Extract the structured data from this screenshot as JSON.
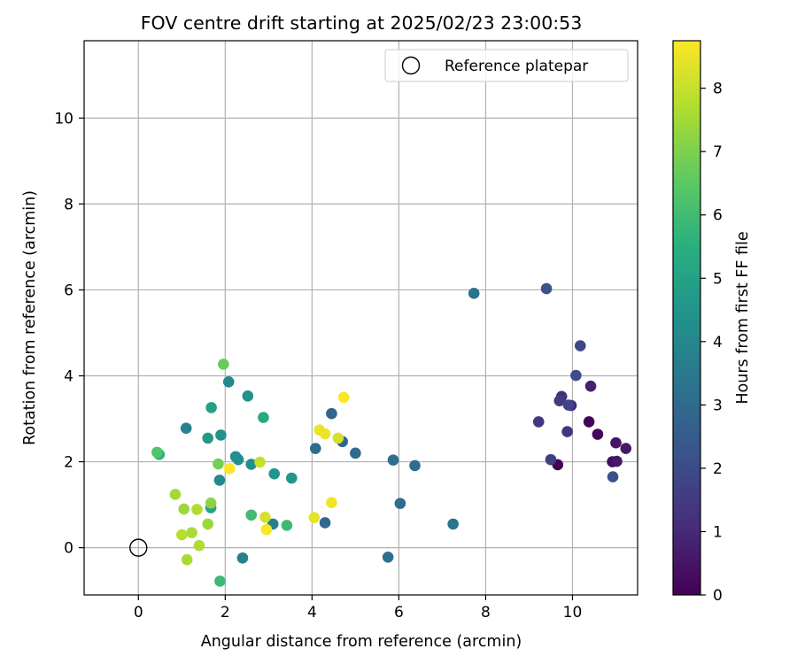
{
  "chart_data": {
    "type": "scatter",
    "title": "FOV centre drift starting at 2025/02/23 23:00:53",
    "xlabel": "Angular distance from reference (arcmin)",
    "ylabel": "Rotation from reference (arcmin)",
    "xlim": [
      -1.25,
      11.5
    ],
    "ylim": [
      -1.1,
      11.8
    ],
    "xticks": [
      0,
      2,
      4,
      6,
      8,
      10
    ],
    "yticks": [
      0,
      2,
      4,
      6,
      8,
      10
    ],
    "grid": true,
    "legend": {
      "placement": "top-right",
      "entries": [
        "Reference platepar"
      ]
    },
    "reference_point": {
      "x": 0,
      "y": 0,
      "name": "Reference platepar"
    },
    "colorbar": {
      "label": "Hours from first FF file",
      "colormap": "viridis",
      "range": [
        0,
        8.75
      ],
      "ticks": [
        0,
        1,
        2,
        3,
        4,
        5,
        6,
        7,
        8
      ]
    },
    "points": [
      {
        "x": 9.66,
        "y": 1.93,
        "c": 0.0
      },
      {
        "x": 10.38,
        "y": 2.93,
        "c": 0.05
      },
      {
        "x": 10.58,
        "y": 2.64,
        "c": 0.15
      },
      {
        "x": 10.92,
        "y": 2.0,
        "c": 0.3
      },
      {
        "x": 11.0,
        "y": 2.44,
        "c": 0.5
      },
      {
        "x": 11.02,
        "y": 2.01,
        "c": 0.55
      },
      {
        "x": 11.23,
        "y": 2.31,
        "c": 0.6
      },
      {
        "x": 10.42,
        "y": 3.76,
        "c": 0.75
      },
      {
        "x": 9.97,
        "y": 3.31,
        "c": 1.0
      },
      {
        "x": 9.75,
        "y": 3.52,
        "c": 1.2
      },
      {
        "x": 9.88,
        "y": 2.7,
        "c": 1.3
      },
      {
        "x": 9.22,
        "y": 2.93,
        "c": 1.4
      },
      {
        "x": 9.5,
        "y": 2.05,
        "c": 1.6
      },
      {
        "x": 9.7,
        "y": 3.42,
        "c": 1.5
      },
      {
        "x": 9.91,
        "y": 3.32,
        "c": 1.8
      },
      {
        "x": 10.18,
        "y": 4.7,
        "c": 1.9
      },
      {
        "x": 10.08,
        "y": 4.01,
        "c": 2.0
      },
      {
        "x": 10.93,
        "y": 1.65,
        "c": 2.2
      },
      {
        "x": 9.4,
        "y": 6.03,
        "c": 2.2
      },
      {
        "x": 4.45,
        "y": 3.12,
        "c": 2.8
      },
      {
        "x": 4.7,
        "y": 2.47,
        "c": 2.9
      },
      {
        "x": 4.3,
        "y": 0.58,
        "c": 2.9
      },
      {
        "x": 5.0,
        "y": 2.2,
        "c": 3.0
      },
      {
        "x": 4.08,
        "y": 2.31,
        "c": 3.0
      },
      {
        "x": 6.03,
        "y": 1.03,
        "c": 3.1
      },
      {
        "x": 6.37,
        "y": 1.91,
        "c": 3.1
      },
      {
        "x": 5.87,
        "y": 2.04,
        "c": 3.2
      },
      {
        "x": 5.75,
        "y": -0.22,
        "c": 3.2
      },
      {
        "x": 7.25,
        "y": 0.55,
        "c": 3.3
      },
      {
        "x": 7.73,
        "y": 5.92,
        "c": 3.3
      },
      {
        "x": 2.4,
        "y": -0.24,
        "c": 3.8
      },
      {
        "x": 1.1,
        "y": 2.78,
        "c": 3.8
      },
      {
        "x": 3.1,
        "y": 0.55,
        "c": 3.8
      },
      {
        "x": 1.87,
        "y": 1.57,
        "c": 4.1
      },
      {
        "x": 2.08,
        "y": 3.86,
        "c": 4.1
      },
      {
        "x": 2.24,
        "y": 2.12,
        "c": 4.3
      },
      {
        "x": 2.3,
        "y": 2.05,
        "c": 4.3
      },
      {
        "x": 2.6,
        "y": 1.94,
        "c": 4.3
      },
      {
        "x": 2.52,
        "y": 3.53,
        "c": 4.4
      },
      {
        "x": 1.9,
        "y": 2.62,
        "c": 4.4
      },
      {
        "x": 3.13,
        "y": 1.72,
        "c": 4.5
      },
      {
        "x": 3.53,
        "y": 1.62,
        "c": 4.6
      },
      {
        "x": 1.6,
        "y": 2.55,
        "c": 4.7
      },
      {
        "x": 1.68,
        "y": 3.26,
        "c": 5.0
      },
      {
        "x": 1.67,
        "y": 0.93,
        "c": 5.1
      },
      {
        "x": 2.88,
        "y": 3.03,
        "c": 5.3
      },
      {
        "x": 0.48,
        "y": 2.17,
        "c": 5.6
      },
      {
        "x": 1.88,
        "y": -0.78,
        "c": 5.9
      },
      {
        "x": 3.42,
        "y": 0.52,
        "c": 5.9
      },
      {
        "x": 2.6,
        "y": 0.76,
        "c": 6.0
      },
      {
        "x": 0.43,
        "y": 2.22,
        "c": 6.3
      },
      {
        "x": 1.96,
        "y": 4.27,
        "c": 6.7
      },
      {
        "x": 1.84,
        "y": 1.95,
        "c": 6.9
      },
      {
        "x": 1.67,
        "y": 1.04,
        "c": 7.2
      },
      {
        "x": 1.6,
        "y": 0.55,
        "c": 7.4
      },
      {
        "x": 1.05,
        "y": 0.9,
        "c": 7.4
      },
      {
        "x": 0.85,
        "y": 1.24,
        "c": 7.5
      },
      {
        "x": 1.12,
        "y": -0.28,
        "c": 7.6
      },
      {
        "x": 1.23,
        "y": 0.35,
        "c": 7.6
      },
      {
        "x": 1.35,
        "y": 0.89,
        "c": 7.7
      },
      {
        "x": 1.4,
        "y": 0.05,
        "c": 7.7
      },
      {
        "x": 1.0,
        "y": 0.3,
        "c": 7.8
      },
      {
        "x": 2.8,
        "y": 1.99,
        "c": 8.0
      },
      {
        "x": 2.92,
        "y": 0.71,
        "c": 8.2
      },
      {
        "x": 4.6,
        "y": 2.55,
        "c": 8.2
      },
      {
        "x": 4.05,
        "y": 0.7,
        "c": 8.4
      },
      {
        "x": 4.17,
        "y": 2.74,
        "c": 8.5
      },
      {
        "x": 4.3,
        "y": 2.65,
        "c": 8.5
      },
      {
        "x": 4.45,
        "y": 1.05,
        "c": 8.6
      },
      {
        "x": 2.95,
        "y": 0.42,
        "c": 8.7
      },
      {
        "x": 2.1,
        "y": 1.84,
        "c": 8.7
      },
      {
        "x": 4.73,
        "y": 3.5,
        "c": 8.7
      }
    ]
  }
}
